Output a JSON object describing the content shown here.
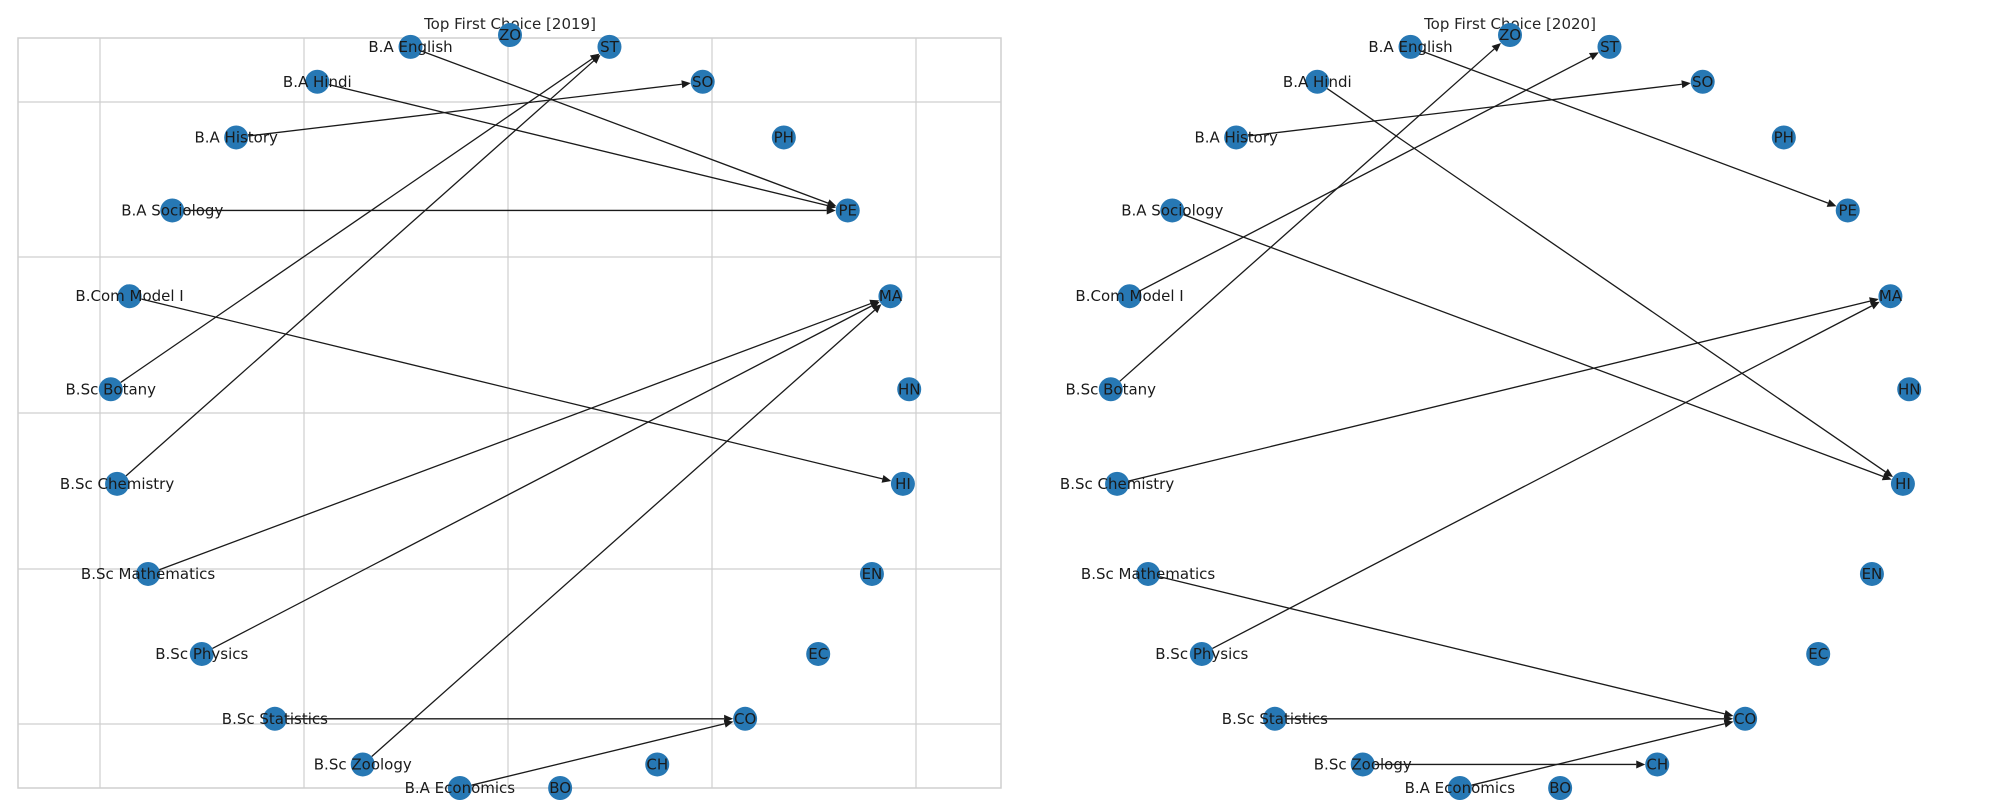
{
  "colors": {
    "node": "#2778b4",
    "edge": "#1a1a1a",
    "grid": "#cfcfcf",
    "text": "#1a1a1a"
  },
  "panels": [
    {
      "title": "Top First Choice [2019]",
      "show_grid": true,
      "nodes": [
        "HN",
        "HI",
        "EN",
        "EC",
        "CO",
        "CH",
        "BO",
        "B.A Economics",
        "B.Sc Zoology",
        "B.Sc Statistics",
        "B.Sc Physics",
        "B.Sc Mathematics",
        "B.Sc Chemistry",
        "B.Sc Botany",
        "B.Com Model I",
        "B.A Sociology",
        "B.A History",
        "B.A Hindi",
        "B.A English",
        "ZO",
        "ST",
        "SO",
        "PH",
        "PE",
        "MA"
      ],
      "edges": [
        [
          "B.A English",
          "PE"
        ],
        [
          "B.A Hindi",
          "PE"
        ],
        [
          "B.A Sociology",
          "PE"
        ],
        [
          "B.A History",
          "SO"
        ],
        [
          "B.Sc Botany",
          "ST"
        ],
        [
          "B.Sc Chemistry",
          "ST"
        ],
        [
          "B.Com Model I",
          "HI"
        ],
        [
          "B.Sc Mathematics",
          "MA"
        ],
        [
          "B.Sc Physics",
          "MA"
        ],
        [
          "B.Sc Zoology",
          "MA"
        ],
        [
          "B.A Economics",
          "CO"
        ],
        [
          "B.Sc Statistics",
          "CO"
        ]
      ]
    },
    {
      "title": "Top First Choice [2020]",
      "show_grid": false,
      "nodes": [
        "HN",
        "HI",
        "EN",
        "EC",
        "CO",
        "CH",
        "BO",
        "B.A Economics",
        "B.Sc Zoology",
        "B.Sc Statistics",
        "B.Sc Physics",
        "B.Sc Mathematics",
        "B.Sc Chemistry",
        "B.Sc Botany",
        "B.Com Model I",
        "B.A Sociology",
        "B.A History",
        "B.A Hindi",
        "B.A English",
        "ZO",
        "ST",
        "SO",
        "PH",
        "PE",
        "MA"
      ],
      "edges": [
        [
          "B.A English",
          "PE"
        ],
        [
          "B.A Hindi",
          "HI"
        ],
        [
          "B.A Sociology",
          "HI"
        ],
        [
          "B.A History",
          "SO"
        ],
        [
          "B.Com Model I",
          "ST"
        ],
        [
          "B.Sc Botany",
          "ZO"
        ],
        [
          "B.Sc Chemistry",
          "MA"
        ],
        [
          "B.Sc Physics",
          "MA"
        ],
        [
          "B.Sc Mathematics",
          "CO"
        ],
        [
          "B.Sc Statistics",
          "CO"
        ],
        [
          "B.A Economics",
          "CO"
        ],
        [
          "B.Sc Zoology",
          "CH"
        ]
      ]
    }
  ]
}
